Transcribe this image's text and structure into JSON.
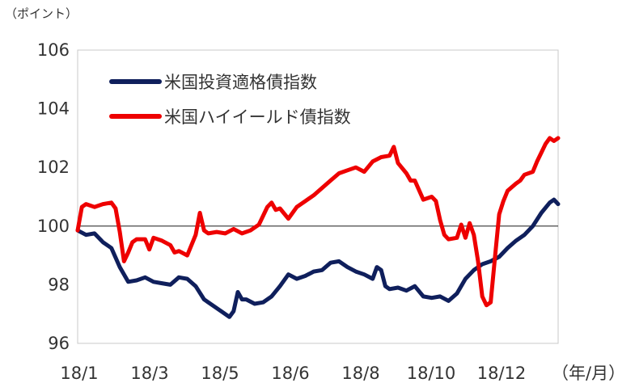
{
  "chart_data": {
    "type": "line",
    "unit_label": "（ポイント）",
    "x_unit_label": "（年/月）",
    "x_tick_labels": [
      "18/1",
      "18/3",
      "18/5",
      "18/6",
      "18/8",
      "18/10",
      "18/12"
    ],
    "y_ticks": [
      96,
      98,
      100,
      102,
      104,
      106
    ],
    "ylim": [
      96,
      106
    ],
    "reference_line": 100,
    "grid": false,
    "legend_position": "top-left-inside",
    "series": [
      {
        "name": "米国投資適格債指数",
        "color": "#0f1f5c",
        "points": [
          [
            0,
            99.85
          ],
          [
            10,
            99.7
          ],
          [
            20,
            99.75
          ],
          [
            30,
            99.45
          ],
          [
            40,
            99.25
          ],
          [
            50,
            98.6
          ],
          [
            60,
            98.1
          ],
          [
            70,
            98.15
          ],
          [
            80,
            98.25
          ],
          [
            90,
            98.1
          ],
          [
            100,
            98.05
          ],
          [
            110,
            98.0
          ],
          [
            120,
            98.25
          ],
          [
            130,
            98.2
          ],
          [
            140,
            97.95
          ],
          [
            150,
            97.5
          ],
          [
            160,
            97.3
          ],
          [
            170,
            97.1
          ],
          [
            180,
            96.9
          ],
          [
            185,
            97.1
          ],
          [
            190,
            97.75
          ],
          [
            195,
            97.5
          ],
          [
            200,
            97.5
          ],
          [
            210,
            97.35
          ],
          [
            220,
            97.4
          ],
          [
            230,
            97.6
          ],
          [
            240,
            97.95
          ],
          [
            250,
            98.35
          ],
          [
            260,
            98.2
          ],
          [
            270,
            98.3
          ],
          [
            280,
            98.45
          ],
          [
            290,
            98.5
          ],
          [
            300,
            98.75
          ],
          [
            310,
            98.8
          ],
          [
            320,
            98.6
          ],
          [
            330,
            98.45
          ],
          [
            340,
            98.35
          ],
          [
            350,
            98.2
          ],
          [
            355,
            98.6
          ],
          [
            360,
            98.5
          ],
          [
            365,
            97.95
          ],
          [
            370,
            97.85
          ],
          [
            380,
            97.9
          ],
          [
            390,
            97.8
          ],
          [
            400,
            97.95
          ],
          [
            410,
            97.6
          ],
          [
            420,
            97.55
          ],
          [
            430,
            97.6
          ],
          [
            440,
            97.45
          ],
          [
            450,
            97.7
          ],
          [
            460,
            98.2
          ],
          [
            470,
            98.5
          ],
          [
            480,
            98.7
          ],
          [
            490,
            98.8
          ],
          [
            500,
            98.95
          ],
          [
            510,
            99.25
          ],
          [
            520,
            99.5
          ],
          [
            530,
            99.7
          ],
          [
            540,
            100.0
          ],
          [
            550,
            100.45
          ],
          [
            560,
            100.8
          ],
          [
            565,
            100.9
          ],
          [
            570,
            100.75
          ]
        ]
      },
      {
        "name": "米国ハイイールド債指数",
        "color": "#ee0000",
        "points": [
          [
            0,
            99.85
          ],
          [
            5,
            100.65
          ],
          [
            10,
            100.75
          ],
          [
            20,
            100.65
          ],
          [
            30,
            100.75
          ],
          [
            40,
            100.8
          ],
          [
            45,
            100.6
          ],
          [
            50,
            99.8
          ],
          [
            55,
            98.8
          ],
          [
            60,
            99.1
          ],
          [
            65,
            99.45
          ],
          [
            70,
            99.55
          ],
          [
            80,
            99.55
          ],
          [
            85,
            99.2
          ],
          [
            90,
            99.6
          ],
          [
            100,
            99.5
          ],
          [
            110,
            99.35
          ],
          [
            115,
            99.1
          ],
          [
            120,
            99.15
          ],
          [
            130,
            99.0
          ],
          [
            140,
            99.7
          ],
          [
            145,
            100.45
          ],
          [
            150,
            99.85
          ],
          [
            155,
            99.75
          ],
          [
            165,
            99.8
          ],
          [
            175,
            99.75
          ],
          [
            185,
            99.9
          ],
          [
            195,
            99.75
          ],
          [
            205,
            99.85
          ],
          [
            215,
            100.05
          ],
          [
            225,
            100.65
          ],
          [
            230,
            100.8
          ],
          [
            235,
            100.55
          ],
          [
            240,
            100.6
          ],
          [
            250,
            100.25
          ],
          [
            260,
            100.65
          ],
          [
            270,
            100.85
          ],
          [
            280,
            101.05
          ],
          [
            290,
            101.3
          ],
          [
            300,
            101.55
          ],
          [
            310,
            101.8
          ],
          [
            320,
            101.9
          ],
          [
            330,
            102.0
          ],
          [
            340,
            101.85
          ],
          [
            350,
            102.2
          ],
          [
            360,
            102.35
          ],
          [
            370,
            102.4
          ],
          [
            375,
            102.7
          ],
          [
            380,
            102.15
          ],
          [
            390,
            101.8
          ],
          [
            395,
            101.55
          ],
          [
            400,
            101.55
          ],
          [
            410,
            100.9
          ],
          [
            420,
            101.0
          ],
          [
            425,
            100.85
          ],
          [
            430,
            100.2
          ],
          [
            435,
            99.7
          ],
          [
            440,
            99.55
          ],
          [
            450,
            99.6
          ],
          [
            455,
            100.05
          ],
          [
            460,
            99.6
          ],
          [
            465,
            100.1
          ],
          [
            470,
            99.7
          ],
          [
            475,
            98.8
          ],
          [
            480,
            97.6
          ],
          [
            485,
            97.3
          ],
          [
            490,
            97.4
          ],
          [
            495,
            98.9
          ],
          [
            500,
            100.4
          ],
          [
            505,
            100.85
          ],
          [
            510,
            101.2
          ],
          [
            520,
            101.45
          ],
          [
            525,
            101.55
          ],
          [
            530,
            101.75
          ],
          [
            540,
            101.85
          ],
          [
            545,
            102.2
          ],
          [
            550,
            102.5
          ],
          [
            555,
            102.8
          ],
          [
            560,
            103.0
          ],
          [
            565,
            102.9
          ],
          [
            570,
            103.0
          ]
        ]
      }
    ]
  }
}
